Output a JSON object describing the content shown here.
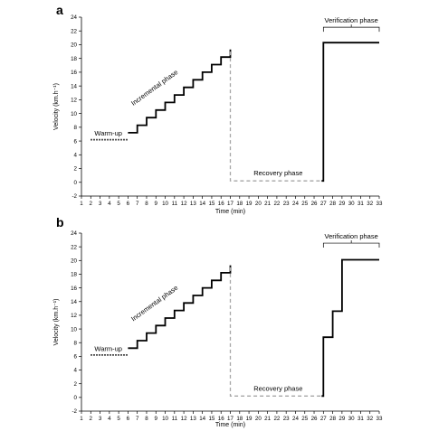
{
  "chart_data": [
    {
      "panel": "a",
      "type": "line",
      "xlabel": "Time (min)",
      "ylabel": "Velocity (km.h⁻¹)",
      "xlim": [
        1,
        33
      ],
      "ylim": [
        -2,
        24
      ],
      "xticks": [
        1,
        2,
        3,
        4,
        5,
        6,
        7,
        8,
        9,
        10,
        11,
        12,
        13,
        14,
        15,
        16,
        17,
        18,
        19,
        20,
        21,
        22,
        23,
        24,
        25,
        26,
        27,
        28,
        29,
        30,
        31,
        32,
        33
      ],
      "yticks": [
        -2,
        0,
        2,
        4,
        6,
        8,
        10,
        12,
        14,
        16,
        18,
        20,
        22,
        24
      ],
      "series": [
        {
          "style": "dotted",
          "x": [
            2,
            6
          ],
          "y": [
            6.2,
            6.2
          ]
        },
        {
          "style": "steps",
          "x": [
            6,
            7,
            7,
            8,
            8,
            9,
            9,
            10,
            10,
            11,
            11,
            12,
            12,
            13,
            13,
            14,
            14,
            15,
            15,
            16,
            16,
            17,
            17
          ],
          "y": [
            7.2,
            7.2,
            8.3,
            8.3,
            9.4,
            9.4,
            10.5,
            10.5,
            11.6,
            11.6,
            12.7,
            12.7,
            13.8,
            13.8,
            14.9,
            14.9,
            16.0,
            16.0,
            17.1,
            17.1,
            18.2,
            18.2,
            19.3
          ]
        },
        {
          "style": "dashed",
          "x": [
            17,
            17,
            26.8
          ],
          "y": [
            19,
            0.2,
            0.2
          ]
        },
        {
          "style": "solid",
          "x": [
            26.8,
            27,
            27,
            33
          ],
          "y": [
            0.2,
            0.2,
            20.3,
            20.3
          ]
        }
      ],
      "annotations": [
        {
          "text": "Warm-up",
          "x": 2.4,
          "y": 6.8
        },
        {
          "text": "Incremental phase",
          "x": 9.0,
          "y": 13.5
        },
        {
          "text": "Recovery phase",
          "x": 19.5,
          "y": 1.0
        },
        {
          "text": "Verification phase",
          "x": 30.0,
          "y": 23.2
        }
      ]
    },
    {
      "panel": "b",
      "type": "line",
      "xlabel": "Time (min)",
      "ylabel": "Velocity (km.h⁻¹)",
      "xlim": [
        1,
        33
      ],
      "ylim": [
        -2,
        24
      ],
      "xticks": [
        1,
        2,
        3,
        4,
        5,
        6,
        7,
        8,
        9,
        10,
        11,
        12,
        13,
        14,
        15,
        16,
        17,
        18,
        19,
        20,
        21,
        22,
        23,
        24,
        25,
        26,
        27,
        28,
        29,
        30,
        31,
        32,
        33
      ],
      "yticks": [
        -2,
        0,
        2,
        4,
        6,
        8,
        10,
        12,
        14,
        16,
        18,
        20,
        22,
        24
      ],
      "series": [
        {
          "style": "dotted",
          "x": [
            2,
            6
          ],
          "y": [
            6.2,
            6.2
          ]
        },
        {
          "style": "steps",
          "x": [
            6,
            7,
            7,
            8,
            8,
            9,
            9,
            10,
            10,
            11,
            11,
            12,
            12,
            13,
            13,
            14,
            14,
            15,
            15,
            16,
            16,
            17,
            17
          ],
          "y": [
            7.2,
            7.2,
            8.3,
            8.3,
            9.4,
            9.4,
            10.5,
            10.5,
            11.6,
            11.6,
            12.7,
            12.7,
            13.8,
            13.8,
            14.9,
            14.9,
            16.0,
            16.0,
            17.1,
            17.1,
            18.2,
            18.2,
            19.3
          ]
        },
        {
          "style": "dashed",
          "x": [
            17,
            17,
            26.8
          ],
          "y": [
            19,
            0.2,
            0.2
          ]
        },
        {
          "style": "solid",
          "x": [
            26.8,
            27,
            27,
            28,
            28,
            29,
            29,
            33
          ],
          "y": [
            0.2,
            0.2,
            8.8,
            8.8,
            12.6,
            12.6,
            20.1,
            20.1
          ]
        }
      ],
      "annotations": [
        {
          "text": "Warm-up",
          "x": 2.4,
          "y": 6.8
        },
        {
          "text": "Incremental phase",
          "x": 9.0,
          "y": 13.5
        },
        {
          "text": "Recovery phase",
          "x": 19.5,
          "y": 1.0
        },
        {
          "text": "Verification phase",
          "x": 30.0,
          "y": 23.2
        }
      ]
    }
  ]
}
